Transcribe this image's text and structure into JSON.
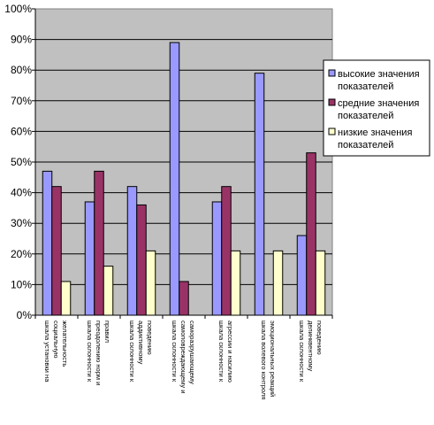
{
  "chart_data": {
    "type": "bar",
    "title": "",
    "xlabel": "",
    "ylabel": "",
    "ylim": [
      0,
      100
    ],
    "yticks": [
      "0%",
      "10%",
      "20%",
      "30%",
      "40%",
      "50%",
      "60%",
      "70%",
      "80%",
      "90%",
      "100%"
    ],
    "grid": true,
    "legend_position": "right",
    "categories": [
      [
        "шкала установки на",
        "социальную",
        "желательность"
      ],
      [
        "шкала склонности к",
        "преодолению норм и",
        "правил"
      ],
      [
        "шкала склонности к",
        "аддиктивному",
        "поведению"
      ],
      [
        "шкала склонности к",
        "самоповреждающему и",
        "саморазрушающему"
      ],
      [
        "шкала склонности к",
        "агрессии и насилию"
      ],
      [
        "шкала волевого контроля",
        "эмоциональных реакций"
      ],
      [
        "шкала склонности к",
        "делинквентному",
        "поведению"
      ]
    ],
    "series": [
      {
        "name": [
          "высокие значения",
          "показателей"
        ],
        "color": "#9999ff",
        "values": [
          47,
          37,
          42,
          89,
          37,
          79,
          26
        ]
      },
      {
        "name": [
          "средние значения",
          "показателей"
        ],
        "color": "#993366",
        "values": [
          42,
          47,
          36,
          11,
          42,
          0,
          53
        ]
      },
      {
        "name": [
          "низкие значения",
          "показателей"
        ],
        "color": "#ffffcc",
        "values": [
          11,
          16,
          21,
          0,
          21,
          21,
          21
        ]
      }
    ],
    "colors": {
      "plot_background": "#c0c0c0",
      "gridline": "#000000",
      "bar_outline": "#000000"
    }
  }
}
